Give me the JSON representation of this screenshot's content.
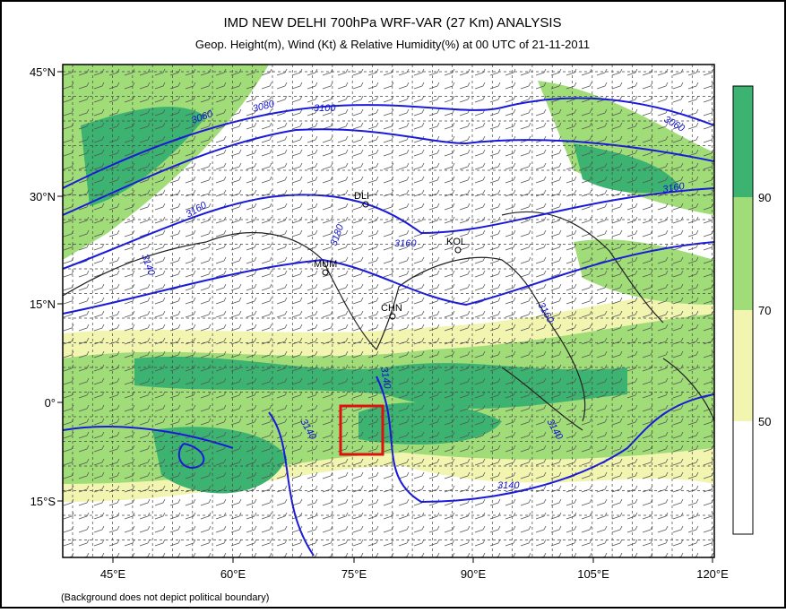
{
  "header": {
    "title": "IMD NEW DELHI 700hPa WRF-VAR (27 Km) ANALYSIS",
    "subtitle": "Geop. Height(m), Wind (Kt) & Relative Humidity(%)  at 00 UTC of 21-11-2011"
  },
  "map": {
    "lat_labels": [
      "45°N",
      "30°N",
      "15°N",
      "0°",
      "15°S"
    ],
    "lon_labels": [
      "45°E",
      "60°E",
      "75°E",
      "90°E",
      "105°E",
      "120°E"
    ],
    "cities": [
      "DLI",
      "MUM",
      "KOL",
      "CHN"
    ],
    "contour_labels": [
      "3060",
      "3080",
      "3100",
      "3060",
      "3160",
      "3140",
      "3180",
      "3160",
      "3160",
      "3160",
      "3140",
      "3140",
      "3140",
      "3140"
    ]
  },
  "colorbar": {
    "labels": [
      "90",
      "70",
      "50"
    ]
  },
  "footnote": "(Background does not depict political boundary)"
}
